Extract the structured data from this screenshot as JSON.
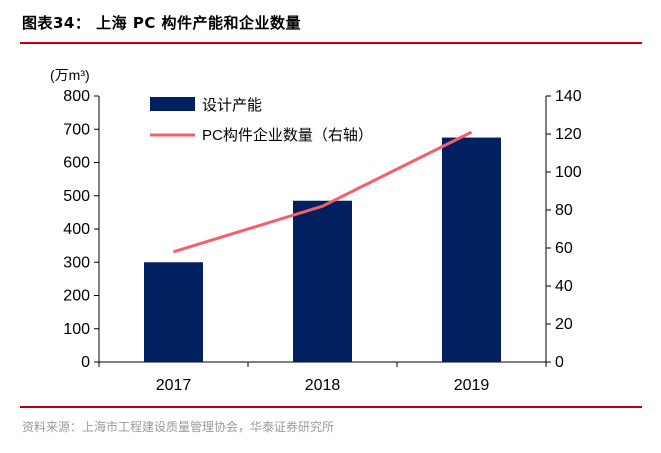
{
  "header": {
    "title": "图表34：  上海 PC 构件产能和企业数量"
  },
  "footer": {
    "source": "资料来源：上海市工程建设质量管理协会，华泰证券研究所"
  },
  "colors": {
    "bar": "#002060",
    "line": "#f4606a",
    "rule": "#c00000"
  },
  "chart_data": {
    "type": "bar",
    "categories": [
      "2017",
      "2018",
      "2019"
    ],
    "series": [
      {
        "name": "设计产能",
        "kind": "bar",
        "axis": "left",
        "values": [
          300,
          485,
          675
        ]
      },
      {
        "name": "PC构件企业数量（右轴）",
        "kind": "line",
        "axis": "right",
        "values": [
          58,
          82,
          121
        ]
      }
    ],
    "ylabel_left": "(万m³)",
    "ylim_left": [
      0,
      800
    ],
    "yticks_left": [
      "0",
      "100",
      "200",
      "300",
      "400",
      "500",
      "600",
      "700",
      "800"
    ],
    "ylim_right": [
      0,
      140
    ],
    "yticks_right": [
      "0",
      "20",
      "40",
      "60",
      "80",
      "100",
      "120",
      "140"
    ],
    "legend": [
      "设计产能",
      "PC构件企业数量（右轴）"
    ]
  }
}
